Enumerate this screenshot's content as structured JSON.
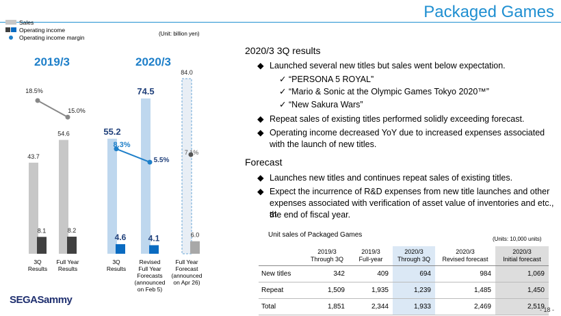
{
  "page_title": "Packaged Games",
  "page_number": "- 18 -",
  "logo_text": "SEGASammy",
  "chart_data": {
    "type": "bar",
    "unit_note": "(Unit: billion yen)",
    "legend": [
      "Sales",
      "Operating income",
      "Operating income margin"
    ],
    "groups": [
      {
        "label": "2019/3",
        "bars": [
          {
            "category": [
              "3Q",
              "Results"
            ],
            "sales": 43.7,
            "operating_income": 8.1,
            "margin": 18.5,
            "style": "gray"
          },
          {
            "category": [
              "Full Year",
              "Results"
            ],
            "sales": 54.6,
            "operating_income": 8.2,
            "margin": 15.0,
            "style": "gray"
          }
        ]
      },
      {
        "label": "2020/3",
        "bars": [
          {
            "category": [
              "3Q",
              "Results"
            ],
            "sales": 55.2,
            "operating_income": 4.6,
            "margin": 8.3,
            "style": "blue"
          },
          {
            "category": [
              "Revised",
              "Full Year",
              "Forecasts",
              "(announced",
              "on Feb 5)"
            ],
            "sales": 74.5,
            "operating_income": 4.1,
            "margin": 5.5,
            "style": "blue"
          },
          {
            "category": [
              "Full Year",
              "Forecast",
              "(announced",
              "on Apr 26)"
            ],
            "sales": 84.0,
            "operating_income": 6.0,
            "margin": 7.1,
            "style": "forecast"
          }
        ]
      }
    ],
    "labels": {
      "sales": [
        "43.7",
        "54.6",
        "55.2",
        "74.5",
        "84.0"
      ],
      "operating_income": [
        "8.1",
        "8.2",
        "4.6",
        "4.1",
        "6.0"
      ],
      "margin": [
        "18.5%",
        "15.0%",
        "8.3%",
        "5.5%",
        "7.1%"
      ]
    },
    "ylim": [
      0,
      90
    ],
    "colors": {
      "gray_sales": "#c7c7c7",
      "gray_oi": "#404040",
      "blue_sales": "#bed7ee",
      "blue_oi": "#0a6bc1",
      "margin_2019": "#888888",
      "margin_2020": "#1e7fc9",
      "group_label": "#1e7fc9"
    }
  },
  "right": {
    "h1": "2020/3 3Q results",
    "b1": "Launched several new titles but sales went below expectation.",
    "c1": "“PERSONA 5 ROYAL”",
    "c2": "“Mario & Sonic at the Olympic Games Tokyo 2020™”",
    "c3": "“New Sakura Wars”",
    "b2": "Repeat sales of existing titles performed solidly exceeding forecast.",
    "b3a": "Operating income decreased YoY due to increased expenses associated",
    "b3b": "with the launch of new titles.",
    "h2": "Forecast",
    "b4": "Launches new titles and continues repeat sales of existing titles.",
    "b5a": "Expect the incurrence of R&D expenses from new title launches and other",
    "b5b": "expenses associated with verification of asset value of inventories and etc., at",
    "b5c": "the end of fiscal year."
  },
  "units_table": {
    "title": "Unit sales of Packaged Games",
    "note": "(Units: 10,000 units)",
    "headers": [
      [
        "2019/3",
        "Through 3Q"
      ],
      [
        "2019/3",
        "Full-year"
      ],
      [
        "2020/3",
        "Through 3Q"
      ],
      [
        "2020/3",
        "Revised forecast"
      ],
      [
        "2020/3",
        "Initial forecast"
      ]
    ],
    "rows": [
      {
        "label": "New titles",
        "values": [
          "342",
          "409",
          "694",
          "984",
          "1,069"
        ]
      },
      {
        "label": "Repeat",
        "values": [
          "1,509",
          "1,935",
          "1,239",
          "1,485",
          "1,450"
        ]
      },
      {
        "label": "Total",
        "values": [
          "1,851",
          "2,344",
          "1,933",
          "2,469",
          "2,519"
        ]
      }
    ]
  }
}
